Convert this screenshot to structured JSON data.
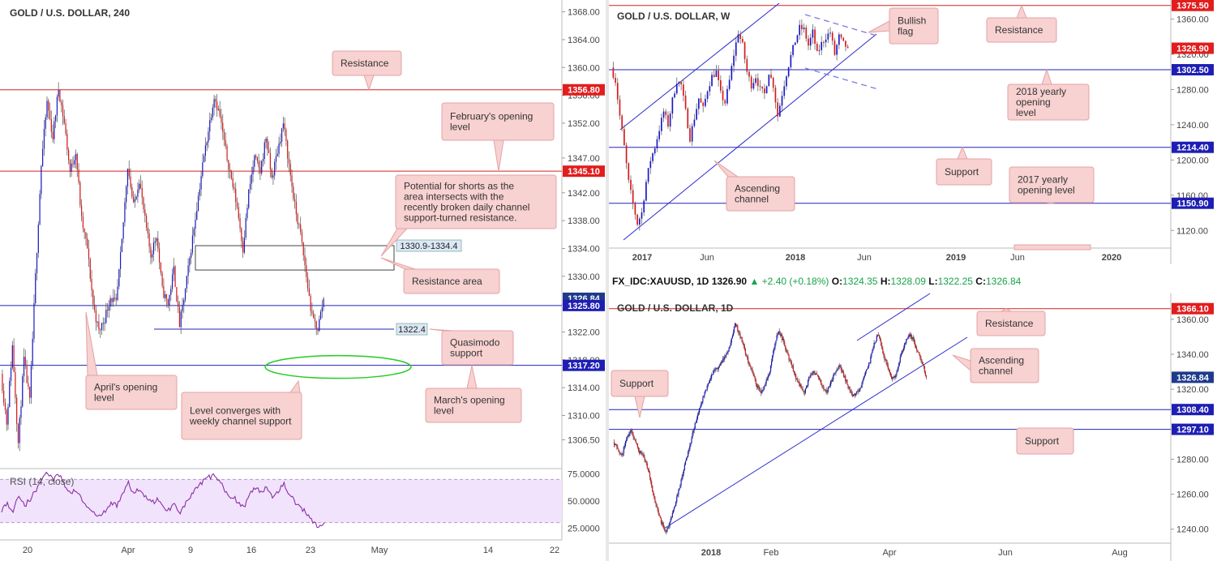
{
  "panels": {
    "h4": {
      "title": "GOLD / U.S. DOLLAR, 240",
      "ylim": [
        1302.6,
        1369.0
      ],
      "yticks": [
        "1368.00",
        "1364.00",
        "1360.00",
        "1356.00",
        "1352.00",
        "1347.00",
        "1342.00",
        "1338.00",
        "1334.00",
        "1330.00",
        "1326.00",
        "1322.00",
        "1318.00",
        "1314.00",
        "1310.00",
        "1306.50"
      ],
      "xticks": [
        "20",
        "Apr",
        "9",
        "16",
        "23",
        "May",
        "14",
        "22"
      ],
      "price_tags": [
        {
          "label": "1356.80",
          "color": "#e11d1d"
        },
        {
          "label": "1345.10",
          "color": "#e11d1d"
        },
        {
          "label": "1326.84",
          "color": "#1e3a8a"
        },
        {
          "label": "1325.80",
          "color": "#1e1eb4"
        },
        {
          "label": "1317.20",
          "color": "#1e1eb4"
        }
      ],
      "zone_label": "1330.9-1334.4",
      "quasimodo_label": "1322.4",
      "annotations": {
        "resistance": "Resistance",
        "february_open": "February's opening level",
        "potential_shorts": "Potential for shorts as the area intersects with the recently broken daily channel support-turned resistance.",
        "resistance_area": "Resistance area",
        "quasimodo": "Quasimodo support",
        "april_open": "April's opening level",
        "level_converges": "Level converges with weekly channel support",
        "march_open": "March's opening level"
      },
      "rsi": {
        "label": "RSI (14, close)",
        "ylim": [
          20,
          80
        ],
        "yticks": [
          "75.0000",
          "50.0000",
          "25.0000"
        ],
        "overbought": 70,
        "oversold": 30
      }
    },
    "weekly": {
      "title": "GOLD / U.S. DOLLAR, W",
      "ylim": [
        1100,
        1378
      ],
      "yticks": [
        "1360.00",
        "1320.00",
        "1280.00",
        "1240.00",
        "1200.00",
        "1160.00",
        "1120.00"
      ],
      "xticks": [
        "2017",
        "Jun",
        "2018",
        "Jun",
        "2019",
        "Jun",
        "2020"
      ],
      "price_tags": [
        {
          "label": "1375.50",
          "color": "#e11d1d"
        },
        {
          "label": "1326.90",
          "color": "#e11d1d"
        },
        {
          "label": "1302.50",
          "color": "#1e1eb4"
        },
        {
          "label": "1214.40",
          "color": "#1e1eb4"
        },
        {
          "label": "1150.90",
          "color": "#1e1eb4"
        }
      ],
      "annotations": {
        "bullish_flag": "Bullish flag",
        "resistance": "Resistance",
        "yearly_2018": "2018 yearly opening level",
        "support": "Support",
        "yearly_2017": "2017 yearly opening level",
        "ascending_channel": "Ascending channel"
      }
    },
    "daily": {
      "symbol_line": {
        "symbol": "FX_IDC:XAUUSD, 1D",
        "last": "1326.90",
        "arrow": "▲",
        "change": "+2.40 (+0.18%)",
        "o_label": "O:",
        "o": "1324.35",
        "h_label": "H:",
        "h": "1328.09",
        "l_label": "L:",
        "l": "1322.25",
        "c_label": "C:",
        "c": "1326.84"
      },
      "title": "GOLD / U.S. DOLLAR, 1D",
      "ylim": [
        1232,
        1372
      ],
      "yticks": [
        "1360.00",
        "1340.00",
        "1320.00",
        "1280.00",
        "1260.00",
        "1240.00"
      ],
      "xticks": [
        "2018",
        "Feb",
        "Apr",
        "Jun",
        "Aug"
      ],
      "price_tags": [
        {
          "label": "1366.10",
          "color": "#e11d1d"
        },
        {
          "label": "1326.84",
          "color": "#1e3a8a"
        },
        {
          "label": "1308.40",
          "color": "#1e1eb4"
        },
        {
          "label": "1297.10",
          "color": "#1e1eb4"
        }
      ],
      "annotations": {
        "resistance": "Resistance",
        "ascending_channel": "Ascending channel",
        "support_left": "Support",
        "support_right": "Support"
      }
    }
  },
  "chart_data": [
    {
      "type": "candlestick",
      "title": "GOLD / U.S. DOLLAR, 240",
      "ylim": [
        1302.6,
        1369.0
      ],
      "levels": {
        "resistance": 1356.8,
        "february_open": 1345.1,
        "april_open": 1325.8,
        "march_open": 1317.2,
        "quasimodo_support": 1322.4,
        "last": 1326.84
      },
      "zone": [
        1330.9,
        1334.4
      ],
      "path": [
        1316,
        1309,
        1320,
        1306,
        1318,
        1312,
        1330,
        1346,
        1355,
        1350,
        1357,
        1352,
        1345,
        1348,
        1338,
        1334,
        1326,
        1322,
        1324,
        1327,
        1326,
        1335,
        1346,
        1340,
        1344,
        1338,
        1333,
        1336,
        1328,
        1326,
        1331,
        1323,
        1328,
        1334,
        1340,
        1346,
        1351,
        1356,
        1353,
        1348,
        1344,
        1340,
        1334,
        1342,
        1347,
        1345,
        1350,
        1344,
        1348,
        1352,
        1346,
        1340,
        1336,
        1330,
        1324,
        1322.5,
        1326.8
      ],
      "rsi": [
        42,
        48,
        40,
        56,
        46,
        52,
        60,
        72,
        76,
        70,
        74,
        64,
        58,
        60,
        50,
        44,
        38,
        36,
        40,
        48,
        46,
        58,
        66,
        56,
        62,
        54,
        48,
        52,
        44,
        42,
        48,
        40,
        48,
        56,
        62,
        68,
        72,
        74,
        66,
        58,
        54,
        50,
        44,
        56,
        62,
        58,
        64,
        54,
        60,
        66,
        56,
        48,
        44,
        38,
        32,
        26,
        30
      ]
    },
    {
      "type": "candlestick",
      "title": "GOLD / U.S. DOLLAR, W",
      "ylim": [
        1100,
        1378
      ],
      "levels": {
        "resistance": 1375.5,
        "yearly_open_2018": 1302.5,
        "support": 1214.4,
        "yearly_open_2017": 1150.9,
        "last": 1326.9
      },
      "path": [
        1305,
        1290,
        1250,
        1215,
        1175,
        1150,
        1128,
        1140,
        1175,
        1200,
        1215,
        1235,
        1255,
        1240,
        1268,
        1290,
        1285,
        1255,
        1225,
        1248,
        1270,
        1258,
        1280,
        1295,
        1300,
        1275,
        1265,
        1290,
        1320,
        1345,
        1330,
        1300,
        1285,
        1295,
        1280,
        1275,
        1300,
        1285,
        1250,
        1275,
        1298,
        1318,
        1335,
        1350,
        1348,
        1330,
        1345,
        1320,
        1332,
        1340,
        1345,
        1320,
        1340,
        1332,
        1326.9
      ]
    },
    {
      "type": "candlestick",
      "title": "GOLD / U.S. DOLLAR, 1D",
      "ylim": [
        1232,
        1372
      ],
      "levels": {
        "resistance": 1366.1,
        "support_1": 1308.4,
        "support_2": 1297.1,
        "last": 1326.84
      },
      "path": [
        1290,
        1286,
        1282,
        1292,
        1296,
        1290,
        1284,
        1282,
        1274,
        1262,
        1252,
        1244,
        1238,
        1244,
        1252,
        1262,
        1272,
        1282,
        1292,
        1302,
        1310,
        1318,
        1324,
        1330,
        1332,
        1336,
        1340,
        1346,
        1358,
        1352,
        1344,
        1336,
        1330,
        1322,
        1318,
        1324,
        1330,
        1344,
        1354,
        1348,
        1340,
        1334,
        1326,
        1322,
        1318,
        1326,
        1330,
        1328,
        1322,
        1318,
        1324,
        1330,
        1334,
        1328,
        1322,
        1316,
        1318,
        1322,
        1330,
        1336,
        1346,
        1352,
        1340,
        1334,
        1326,
        1328,
        1338,
        1346,
        1352,
        1348,
        1342,
        1336,
        1326.8
      ]
    }
  ]
}
